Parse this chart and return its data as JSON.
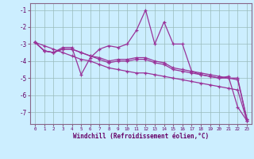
{
  "xlabel": "Windchill (Refroidissement éolien,°C)",
  "background_color": "#cceeff",
  "line_color": "#993399",
  "grid_color": "#99bbbb",
  "x": [
    0,
    1,
    2,
    3,
    4,
    5,
    6,
    7,
    8,
    9,
    10,
    11,
    12,
    13,
    14,
    15,
    16,
    17,
    18,
    19,
    20,
    21,
    22,
    23
  ],
  "line_volatile": [
    -2.9,
    -3.4,
    -3.5,
    -3.2,
    -3.2,
    -4.8,
    -3.8,
    -3.3,
    -3.1,
    -3.2,
    -3.0,
    -2.2,
    -1.0,
    -3.0,
    -1.7,
    -3.0,
    -3.0,
    -4.6,
    -4.8,
    -4.9,
    -5.0,
    -4.9,
    -6.7,
    -7.5
  ],
  "line_straight": [
    -2.9,
    -3.1,
    -3.3,
    -3.5,
    -3.7,
    -3.9,
    -4.0,
    -4.2,
    -4.4,
    -4.5,
    -4.6,
    -4.7,
    -4.7,
    -4.8,
    -4.9,
    -5.0,
    -5.1,
    -5.2,
    -5.3,
    -5.4,
    -5.5,
    -5.6,
    -5.7,
    -7.5
  ],
  "line_mid1": [
    -2.9,
    -3.4,
    -3.5,
    -3.3,
    -3.3,
    -3.5,
    -3.7,
    -3.8,
    -4.0,
    -3.9,
    -3.9,
    -3.8,
    -3.8,
    -4.0,
    -4.1,
    -4.4,
    -4.5,
    -4.6,
    -4.7,
    -4.8,
    -4.9,
    -5.0,
    -5.0,
    -7.4
  ],
  "line_mid2": [
    -2.9,
    -3.4,
    -3.5,
    -3.3,
    -3.3,
    -3.5,
    -3.7,
    -3.9,
    -4.1,
    -4.0,
    -4.0,
    -3.9,
    -3.9,
    -4.1,
    -4.2,
    -4.5,
    -4.6,
    -4.7,
    -4.8,
    -4.9,
    -5.0,
    -5.0,
    -5.1,
    -7.4
  ],
  "ylim": [
    -7.7,
    -0.6
  ],
  "xlim": [
    -0.5,
    23.5
  ],
  "yticks": [
    -7,
    -6,
    -5,
    -4,
    -3,
    -2,
    -1
  ],
  "xticks": [
    0,
    1,
    2,
    3,
    4,
    5,
    6,
    7,
    8,
    9,
    10,
    11,
    12,
    13,
    14,
    15,
    16,
    17,
    18,
    19,
    20,
    21,
    22,
    23
  ],
  "tick_label_color": "#660066",
  "spine_color": "#886688"
}
